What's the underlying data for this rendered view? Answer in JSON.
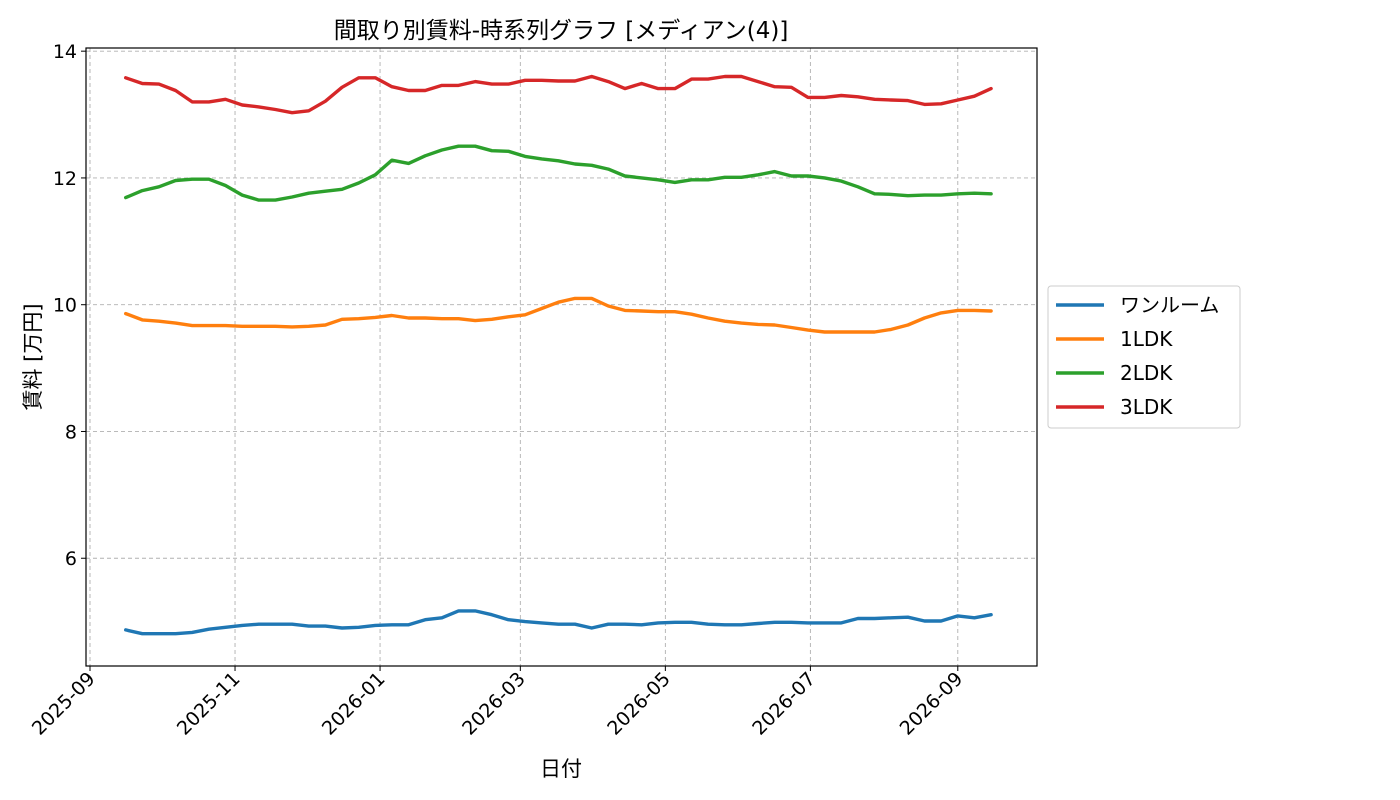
{
  "chart_data": {
    "type": "line",
    "title": "間取り別賃料-時系列グラフ [メディアン(4)]",
    "xlabel": "日付",
    "ylabel": "賃料 [万円]",
    "ylim": [
      4.3,
      14.05
    ],
    "xlim": [
      "2025-09-01",
      "2026-09-30"
    ],
    "yticks": [
      6,
      8,
      10,
      12,
      14
    ],
    "ytick_labels": [
      "6",
      "8",
      "10",
      "12",
      "14"
    ],
    "xticks": [
      "2025-09-01",
      "2025-11-01",
      "2026-01-01",
      "2026-03-01",
      "2026-05-01",
      "2026-07-01",
      "2026-09-01"
    ],
    "xtick_labels": [
      "2025-09",
      "2025-11",
      "2026-01",
      "2026-03",
      "2026-05",
      "2026-07",
      "2026-09"
    ],
    "grid": true,
    "legend_position": "right-outside",
    "x": [
      "2025-09-16",
      "2025-09-23",
      "2025-09-30",
      "2025-10-07",
      "2025-10-14",
      "2025-10-21",
      "2025-10-28",
      "2025-11-04",
      "2025-11-11",
      "2025-11-18",
      "2025-11-25",
      "2025-12-02",
      "2025-12-09",
      "2025-12-16",
      "2025-12-23",
      "2025-12-30",
      "2026-01-06",
      "2026-01-13",
      "2026-01-20",
      "2026-01-27",
      "2026-02-03",
      "2026-02-10",
      "2026-02-17",
      "2026-02-24",
      "2026-03-03",
      "2026-03-10",
      "2026-03-17",
      "2026-03-24",
      "2026-03-31",
      "2026-04-07",
      "2026-04-14",
      "2026-04-21",
      "2026-04-28",
      "2026-05-05",
      "2026-05-12",
      "2026-05-19",
      "2026-05-26",
      "2026-06-02",
      "2026-06-09",
      "2026-06-16",
      "2026-06-23",
      "2026-06-30",
      "2026-07-07",
      "2026-07-14",
      "2026-07-21",
      "2026-07-28",
      "2026-08-04",
      "2026-08-11",
      "2026-08-18",
      "2026-08-25",
      "2026-09-01",
      "2026-09-08",
      "2026-09-15"
    ],
    "series": [
      {
        "name": "ワンルーム",
        "color": "#1f77b4",
        "values": [
          4.87,
          4.81,
          4.81,
          4.81,
          4.83,
          4.88,
          4.91,
          4.94,
          4.96,
          4.96,
          4.96,
          4.93,
          4.93,
          4.9,
          4.91,
          4.94,
          4.95,
          4.95,
          5.03,
          5.06,
          5.17,
          5.17,
          5.11,
          5.03,
          5.0,
          4.98,
          4.96,
          4.96,
          4.9,
          4.96,
          4.96,
          4.95,
          4.98,
          4.99,
          4.99,
          4.96,
          4.95,
          4.95,
          4.97,
          4.99,
          4.99,
          4.98,
          4.98,
          4.98,
          5.05,
          5.05,
          5.06,
          5.07,
          5.01,
          5.01,
          5.09,
          5.06,
          5.11
        ]
      },
      {
        "name": "1LDK",
        "color": "#ff7f0e",
        "values": [
          9.86,
          9.76,
          9.74,
          9.71,
          9.67,
          9.67,
          9.67,
          9.66,
          9.66,
          9.66,
          9.65,
          9.66,
          9.68,
          9.77,
          9.78,
          9.8,
          9.83,
          9.79,
          9.79,
          9.78,
          9.78,
          9.75,
          9.77,
          9.81,
          9.84,
          9.94,
          10.04,
          10.1,
          10.1,
          9.98,
          9.91,
          9.9,
          9.89,
          9.89,
          9.85,
          9.79,
          9.74,
          9.71,
          9.69,
          9.68,
          9.64,
          9.6,
          9.57,
          9.57,
          9.57,
          9.57,
          9.61,
          9.68,
          9.79,
          9.87,
          9.91,
          9.91,
          9.9
        ]
      },
      {
        "name": "2LDK",
        "color": "#2ca02c",
        "values": [
          11.69,
          11.8,
          11.86,
          11.96,
          11.98,
          11.98,
          11.88,
          11.73,
          11.65,
          11.65,
          11.7,
          11.76,
          11.79,
          11.82,
          11.92,
          12.05,
          12.28,
          12.23,
          12.35,
          12.44,
          12.5,
          12.5,
          12.43,
          12.42,
          12.34,
          12.3,
          12.27,
          12.22,
          12.2,
          12.14,
          12.03,
          12.0,
          11.97,
          11.93,
          11.97,
          11.97,
          12.01,
          12.01,
          12.05,
          12.1,
          12.03,
          12.03,
          12.0,
          11.95,
          11.86,
          11.75,
          11.74,
          11.72,
          11.73,
          11.73,
          11.75,
          11.76,
          11.75
        ]
      },
      {
        "name": "3LDK",
        "color": "#d62728",
        "values": [
          13.58,
          13.49,
          13.48,
          13.38,
          13.2,
          13.2,
          13.24,
          13.15,
          13.12,
          13.08,
          13.03,
          13.06,
          13.21,
          13.43,
          13.58,
          13.58,
          13.44,
          13.38,
          13.38,
          13.46,
          13.46,
          13.52,
          13.48,
          13.48,
          13.54,
          13.54,
          13.53,
          13.53,
          13.6,
          13.52,
          13.41,
          13.49,
          13.41,
          13.41,
          13.56,
          13.56,
          13.6,
          13.6,
          13.52,
          13.44,
          13.43,
          13.27,
          13.27,
          13.3,
          13.28,
          13.24,
          13.23,
          13.22,
          13.16,
          13.17,
          13.23,
          13.29,
          13.41
        ]
      }
    ]
  }
}
